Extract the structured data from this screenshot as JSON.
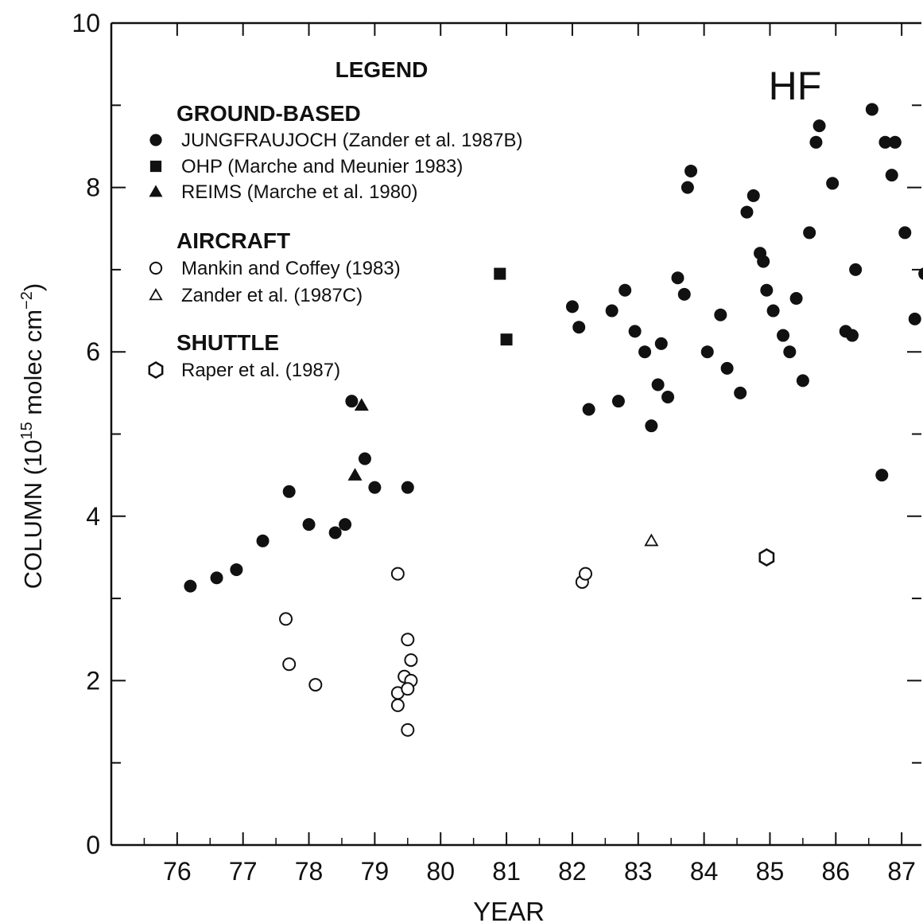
{
  "chart_data": {
    "type": "scatter",
    "title": "HF",
    "xlabel": "YEAR",
    "ylabel_main": "COLUMN (10",
    "ylabel_sup1": "15",
    "ylabel_mid": " molec cm",
    "ylabel_sup2": "−2",
    "ylabel_end": ")",
    "xlim": [
      75.0,
      87.3
    ],
    "ylim": [
      0,
      10
    ],
    "x_ticks": [
      76,
      77,
      78,
      79,
      80,
      81,
      82,
      83,
      84,
      85,
      86,
      87
    ],
    "x_tick_labels": [
      "76",
      "77",
      "78",
      "79",
      "80",
      "81",
      "82",
      "83",
      "84",
      "85",
      "86",
      "87"
    ],
    "y_ticks": [
      0,
      2,
      4,
      6,
      8,
      10
    ],
    "y_tick_labels": [
      "0",
      "2",
      "4",
      "6",
      "8",
      "10"
    ],
    "grid": false,
    "legend": {
      "title": "LEGEND",
      "groups": [
        {
          "heading": "GROUND-BASED",
          "entries": [
            {
              "marker": "filled-circle",
              "label": "JUNGFRAUJOCH (Zander et al. 1987B)"
            },
            {
              "marker": "filled-square",
              "label": "OHP (Marche and Meunier 1983)"
            },
            {
              "marker": "filled-triangle",
              "label": "REIMS (Marche et al. 1980)"
            }
          ]
        },
        {
          "heading": "AIRCRAFT",
          "entries": [
            {
              "marker": "open-circle",
              "label": "Mankin and Coffey (1983)"
            },
            {
              "marker": "open-triangle",
              "label": "Zander et al. (1987C)"
            }
          ]
        },
        {
          "heading": "SHUTTLE",
          "entries": [
            {
              "marker": "open-hexagon",
              "label": "Raper et al. (1987)"
            }
          ]
        }
      ]
    },
    "series": [
      {
        "name": "JUNGFRAUJOCH (Zander et al. 1987B)",
        "marker": "filled-circle",
        "points": [
          [
            76.2,
            3.15
          ],
          [
            76.6,
            3.25
          ],
          [
            76.9,
            3.35
          ],
          [
            77.3,
            3.7
          ],
          [
            77.7,
            4.3
          ],
          [
            78.0,
            3.9
          ],
          [
            78.4,
            3.8
          ],
          [
            78.55,
            3.9
          ],
          [
            78.65,
            5.4
          ],
          [
            78.85,
            4.7
          ],
          [
            79.0,
            4.35
          ],
          [
            79.5,
            4.35
          ],
          [
            82.0,
            6.55
          ],
          [
            82.1,
            6.3
          ],
          [
            82.25,
            5.3
          ],
          [
            82.6,
            6.5
          ],
          [
            82.7,
            5.4
          ],
          [
            82.8,
            6.75
          ],
          [
            82.95,
            6.25
          ],
          [
            83.1,
            6.0
          ],
          [
            83.2,
            5.1
          ],
          [
            83.3,
            5.6
          ],
          [
            83.35,
            6.1
          ],
          [
            83.45,
            5.45
          ],
          [
            83.6,
            6.9
          ],
          [
            83.7,
            6.7
          ],
          [
            83.75,
            8.0
          ],
          [
            83.8,
            8.2
          ],
          [
            84.05,
            6.0
          ],
          [
            84.25,
            6.45
          ],
          [
            84.35,
            5.8
          ],
          [
            84.55,
            5.5
          ],
          [
            84.65,
            7.7
          ],
          [
            84.75,
            7.9
          ],
          [
            84.85,
            7.2
          ],
          [
            84.9,
            7.1
          ],
          [
            84.95,
            6.75
          ],
          [
            85.05,
            6.5
          ],
          [
            85.2,
            6.2
          ],
          [
            85.3,
            6.0
          ],
          [
            85.4,
            6.65
          ],
          [
            85.5,
            5.65
          ],
          [
            85.6,
            7.45
          ],
          [
            85.7,
            8.55
          ],
          [
            85.75,
            8.75
          ],
          [
            85.95,
            8.05
          ],
          [
            86.15,
            6.25
          ],
          [
            86.25,
            6.2
          ],
          [
            86.3,
            7.0
          ],
          [
            86.55,
            8.95
          ],
          [
            86.7,
            4.5
          ],
          [
            86.75,
            8.55
          ],
          [
            86.85,
            8.15
          ],
          [
            86.9,
            8.55
          ],
          [
            87.05,
            7.45
          ],
          [
            87.2,
            6.4
          ],
          [
            87.35,
            6.95
          ]
        ]
      },
      {
        "name": "OHP (Marche and Meunier 1983)",
        "marker": "filled-square",
        "points": [
          [
            80.9,
            6.95
          ],
          [
            81.0,
            6.15
          ]
        ]
      },
      {
        "name": "REIMS (Marche et al. 1980)",
        "marker": "filled-triangle",
        "points": [
          [
            78.8,
            5.35
          ],
          [
            78.7,
            4.5
          ]
        ]
      },
      {
        "name": "Mankin and Coffey (1983)",
        "marker": "open-circle",
        "points": [
          [
            77.65,
            2.75
          ],
          [
            77.7,
            2.2
          ],
          [
            78.1,
            1.95
          ],
          [
            79.35,
            3.3
          ],
          [
            79.5,
            2.5
          ],
          [
            79.55,
            2.25
          ],
          [
            79.45,
            2.05
          ],
          [
            79.55,
            2.0
          ],
          [
            79.35,
            1.85
          ],
          [
            79.5,
            1.9
          ],
          [
            79.35,
            1.7
          ],
          [
            79.5,
            1.4
          ],
          [
            82.15,
            3.2
          ],
          [
            82.2,
            3.3
          ]
        ]
      },
      {
        "name": "Zander et al. (1987C)",
        "marker": "open-triangle",
        "points": [
          [
            83.2,
            3.7
          ]
        ]
      },
      {
        "name": "Raper et al. (1987)",
        "marker": "open-hexagon",
        "points": [
          [
            84.95,
            3.5
          ]
        ]
      }
    ]
  }
}
